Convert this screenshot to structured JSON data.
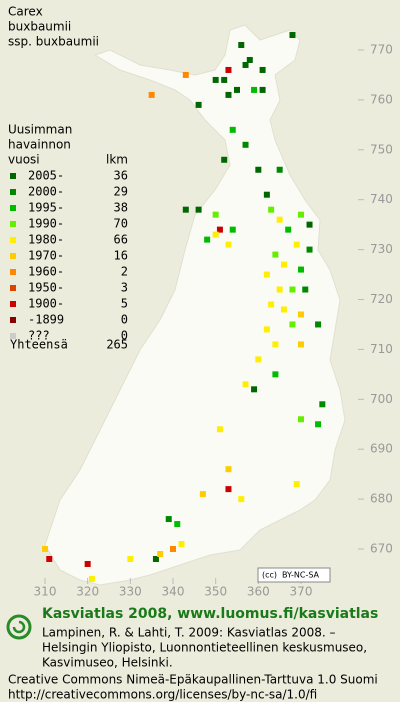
{
  "title": [
    "Carex",
    "buxbaumii",
    "ssp. buxbaumii"
  ],
  "legend": {
    "header": [
      "Uusimman",
      "havainnon",
      "vuosi"
    ],
    "count_header": "lkm",
    "rows": [
      {
        "label": "2005-",
        "count": 36,
        "color": "#006600"
      },
      {
        "label": "2000-",
        "count": 29,
        "color": "#008800"
      },
      {
        "label": "1995-",
        "count": 38,
        "color": "#00bb00"
      },
      {
        "label": "1990-",
        "count": 70,
        "color": "#66ee00"
      },
      {
        "label": "1980-",
        "count": 66,
        "color": "#ffee00"
      },
      {
        "label": "1970-",
        "count": 16,
        "color": "#ffcc00"
      },
      {
        "label": "1960-",
        "count": 2,
        "color": "#ff8800"
      },
      {
        "label": "1950-",
        "count": 3,
        "color": "#dd4400"
      },
      {
        "label": "1900-",
        "count": 5,
        "color": "#cc0000"
      },
      {
        "label": "-1899",
        "count": 0,
        "color": "#880000"
      },
      {
        "label": "???",
        "count": 0,
        "color": "#cccccc"
      }
    ],
    "total_label": "Yhteensä",
    "total": 265
  },
  "map": {
    "xlim": [
      310,
      370
    ],
    "ylim": [
      670,
      770
    ],
    "xticks": [
      310,
      320,
      330,
      340,
      350,
      360,
      370
    ],
    "yticks": [
      770,
      760,
      750,
      740,
      730,
      720,
      710,
      700,
      690,
      680,
      670
    ],
    "points": [
      {
        "x": 356,
        "y": 771,
        "period": 0
      },
      {
        "x": 368,
        "y": 773,
        "period": 0
      },
      {
        "x": 357,
        "y": 767,
        "period": 0
      },
      {
        "x": 358,
        "y": 768,
        "period": 0
      },
      {
        "x": 353,
        "y": 766,
        "period": 8
      },
      {
        "x": 350,
        "y": 764,
        "period": 0
      },
      {
        "x": 352,
        "y": 764,
        "period": 0
      },
      {
        "x": 355,
        "y": 762,
        "period": 0
      },
      {
        "x": 361,
        "y": 766,
        "period": 0
      },
      {
        "x": 353,
        "y": 761,
        "period": 0
      },
      {
        "x": 359,
        "y": 762,
        "period": 2
      },
      {
        "x": 361,
        "y": 762,
        "period": 0
      },
      {
        "x": 346,
        "y": 759,
        "period": 0
      },
      {
        "x": 343,
        "y": 765,
        "period": 6
      },
      {
        "x": 335,
        "y": 761,
        "period": 6
      },
      {
        "x": 354,
        "y": 754,
        "period": 2
      },
      {
        "x": 357,
        "y": 751,
        "period": 1
      },
      {
        "x": 352,
        "y": 748,
        "period": 0
      },
      {
        "x": 362,
        "y": 741,
        "period": 0
      },
      {
        "x": 360,
        "y": 746,
        "period": 0
      },
      {
        "x": 365,
        "y": 746,
        "period": 1
      },
      {
        "x": 346,
        "y": 738,
        "period": 0
      },
      {
        "x": 350,
        "y": 737,
        "period": 3
      },
      {
        "x": 351,
        "y": 734,
        "period": 8
      },
      {
        "x": 350,
        "y": 733,
        "period": 4
      },
      {
        "x": 354,
        "y": 734,
        "period": 2
      },
      {
        "x": 348,
        "y": 732,
        "period": 2
      },
      {
        "x": 353,
        "y": 731,
        "period": 4
      },
      {
        "x": 343,
        "y": 738,
        "period": 0
      },
      {
        "x": 363,
        "y": 738,
        "period": 3
      },
      {
        "x": 365,
        "y": 736,
        "period": 4
      },
      {
        "x": 367,
        "y": 734,
        "period": 2
      },
      {
        "x": 370,
        "y": 737,
        "period": 3
      },
      {
        "x": 372,
        "y": 735,
        "period": 0
      },
      {
        "x": 369,
        "y": 731,
        "period": 4
      },
      {
        "x": 364,
        "y": 729,
        "period": 3
      },
      {
        "x": 366,
        "y": 727,
        "period": 4
      },
      {
        "x": 370,
        "y": 726,
        "period": 2
      },
      {
        "x": 372,
        "y": 730,
        "period": 1
      },
      {
        "x": 362,
        "y": 725,
        "period": 4
      },
      {
        "x": 365,
        "y": 722,
        "period": 4
      },
      {
        "x": 368,
        "y": 722,
        "period": 3
      },
      {
        "x": 371,
        "y": 722,
        "period": 1
      },
      {
        "x": 363,
        "y": 719,
        "period": 4
      },
      {
        "x": 366,
        "y": 718,
        "period": 4
      },
      {
        "x": 362,
        "y": 714,
        "period": 4
      },
      {
        "x": 368,
        "y": 715,
        "period": 3
      },
      {
        "x": 370,
        "y": 717,
        "period": 5
      },
      {
        "x": 374,
        "y": 715,
        "period": 1
      },
      {
        "x": 364,
        "y": 711,
        "period": 4
      },
      {
        "x": 370,
        "y": 711,
        "period": 5
      },
      {
        "x": 360,
        "y": 708,
        "period": 4
      },
      {
        "x": 359,
        "y": 702,
        "period": 0
      },
      {
        "x": 364,
        "y": 705,
        "period": 2
      },
      {
        "x": 375,
        "y": 699,
        "period": 1
      },
      {
        "x": 374,
        "y": 695,
        "period": 2
      },
      {
        "x": 370,
        "y": 696,
        "period": 3
      },
      {
        "x": 353,
        "y": 686,
        "period": 5
      },
      {
        "x": 353,
        "y": 682,
        "period": 8
      },
      {
        "x": 347,
        "y": 681,
        "period": 5
      },
      {
        "x": 356,
        "y": 680,
        "period": 4
      },
      {
        "x": 369,
        "y": 683,
        "period": 4
      },
      {
        "x": 339,
        "y": 676,
        "period": 1
      },
      {
        "x": 341,
        "y": 675,
        "period": 2
      },
      {
        "x": 340,
        "y": 670,
        "period": 6
      },
      {
        "x": 342,
        "y": 671,
        "period": 4
      },
      {
        "x": 336,
        "y": 668,
        "period": 0
      },
      {
        "x": 337,
        "y": 669,
        "period": 5
      },
      {
        "x": 330,
        "y": 668,
        "period": 4
      },
      {
        "x": 320,
        "y": 667,
        "period": 8
      },
      {
        "x": 310,
        "y": 670,
        "period": 5
      },
      {
        "x": 311,
        "y": 668,
        "period": 8
      },
      {
        "x": 321,
        "y": 664,
        "period": 4
      },
      {
        "x": 351,
        "y": 694,
        "period": 4
      },
      {
        "x": 357,
        "y": 703,
        "period": 4
      }
    ]
  },
  "cc_badge": [
    "(cc)",
    "BY-NC-SA"
  ],
  "footer": {
    "headline": "Kasviatlas 2008, www.luomus.fi/kasviatlas",
    "citation": [
      "Lampinen, R. & Lahti, T. 2009: Kasviatlas 2008. –",
      "Helsingin Yliopisto, Luonnontieteellinen keskusmuseo,",
      "Kasvimuseo, Helsinki."
    ],
    "license": [
      "Creative Commons Nimeä-Epäkaupallinen-Tarttuva 1.0 Suomi",
      "http://creativecommons.org/licenses/by-nc-sa/1.0/fi"
    ]
  }
}
